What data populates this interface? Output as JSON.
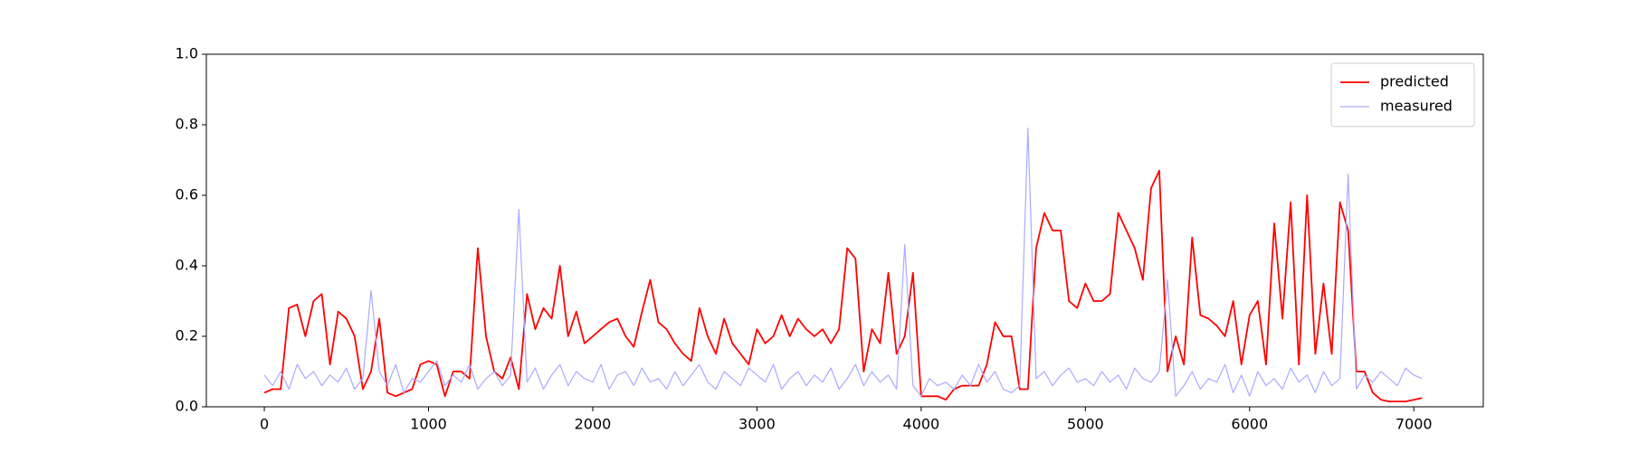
{
  "chart_data": {
    "type": "line",
    "x": [
      0,
      50,
      100,
      150,
      200,
      250,
      300,
      350,
      400,
      450,
      500,
      550,
      600,
      650,
      700,
      750,
      800,
      850,
      900,
      950,
      1000,
      1050,
      1100,
      1150,
      1200,
      1250,
      1300,
      1350,
      1400,
      1450,
      1500,
      1550,
      1600,
      1650,
      1700,
      1750,
      1800,
      1850,
      1900,
      1950,
      2000,
      2050,
      2100,
      2150,
      2200,
      2250,
      2300,
      2350,
      2400,
      2450,
      2500,
      2550,
      2600,
      2650,
      2700,
      2750,
      2800,
      2850,
      2900,
      2950,
      3000,
      3050,
      3100,
      3150,
      3200,
      3250,
      3300,
      3350,
      3400,
      3450,
      3500,
      3550,
      3600,
      3650,
      3700,
      3750,
      3800,
      3850,
      3900,
      3950,
      4000,
      4050,
      4100,
      4150,
      4200,
      4250,
      4300,
      4350,
      4400,
      4450,
      4500,
      4550,
      4600,
      4650,
      4700,
      4750,
      4800,
      4850,
      4900,
      4950,
      5000,
      5050,
      5100,
      5150,
      5200,
      5250,
      5300,
      5350,
      5400,
      5450,
      5500,
      5550,
      5600,
      5650,
      5700,
      5750,
      5800,
      5850,
      5900,
      5950,
      6000,
      6050,
      6100,
      6150,
      6200,
      6250,
      6300,
      6350,
      6400,
      6450,
      6500,
      6550,
      6600,
      6650,
      6700,
      6750,
      6800,
      6850,
      6900,
      6950,
      7000,
      7050
    ],
    "series": [
      {
        "name": "predicted",
        "color": "#ff0000",
        "values": [
          0.04,
          0.05,
          0.05,
          0.28,
          0.29,
          0.2,
          0.3,
          0.32,
          0.12,
          0.27,
          0.25,
          0.2,
          0.05,
          0.1,
          0.25,
          0.04,
          0.03,
          0.04,
          0.05,
          0.12,
          0.13,
          0.12,
          0.03,
          0.1,
          0.1,
          0.08,
          0.45,
          0.2,
          0.1,
          0.08,
          0.14,
          0.05,
          0.32,
          0.22,
          0.28,
          0.25,
          0.4,
          0.2,
          0.27,
          0.18,
          0.2,
          0.22,
          0.24,
          0.25,
          0.2,
          0.17,
          0.27,
          0.36,
          0.24,
          0.22,
          0.18,
          0.15,
          0.13,
          0.28,
          0.2,
          0.15,
          0.25,
          0.18,
          0.15,
          0.12,
          0.22,
          0.18,
          0.2,
          0.26,
          0.2,
          0.25,
          0.22,
          0.2,
          0.22,
          0.18,
          0.22,
          0.45,
          0.42,
          0.1,
          0.22,
          0.18,
          0.38,
          0.15,
          0.2,
          0.38,
          0.03,
          0.03,
          0.03,
          0.02,
          0.05,
          0.06,
          0.06,
          0.06,
          0.12,
          0.24,
          0.2,
          0.2,
          0.05,
          0.05,
          0.45,
          0.55,
          0.5,
          0.5,
          0.3,
          0.28,
          0.35,
          0.3,
          0.3,
          0.32,
          0.55,
          0.5,
          0.45,
          0.36,
          0.62,
          0.67,
          0.1,
          0.2,
          0.12,
          0.48,
          0.26,
          0.25,
          0.23,
          0.2,
          0.3,
          0.12,
          0.26,
          0.3,
          0.12,
          0.52,
          0.25,
          0.58,
          0.12,
          0.6,
          0.15,
          0.35,
          0.15,
          0.58,
          0.5,
          0.1,
          0.1,
          0.04,
          0.02,
          0.015,
          0.015,
          0.015,
          0.02,
          0.025
        ]
      },
      {
        "name": "measured",
        "color": "#aaaaff",
        "values": [
          0.09,
          0.06,
          0.1,
          0.05,
          0.12,
          0.08,
          0.1,
          0.06,
          0.09,
          0.07,
          0.11,
          0.05,
          0.08,
          0.33,
          0.1,
          0.06,
          0.12,
          0.04,
          0.08,
          0.07,
          0.1,
          0.13,
          0.06,
          0.09,
          0.07,
          0.12,
          0.05,
          0.08,
          0.1,
          0.06,
          0.09,
          0.56,
          0.07,
          0.11,
          0.05,
          0.09,
          0.12,
          0.06,
          0.1,
          0.08,
          0.07,
          0.12,
          0.05,
          0.09,
          0.1,
          0.06,
          0.11,
          0.07,
          0.08,
          0.05,
          0.1,
          0.06,
          0.09,
          0.12,
          0.07,
          0.05,
          0.1,
          0.08,
          0.06,
          0.11,
          0.09,
          0.07,
          0.12,
          0.05,
          0.08,
          0.1,
          0.06,
          0.09,
          0.07,
          0.11,
          0.05,
          0.08,
          0.12,
          0.06,
          0.1,
          0.07,
          0.09,
          0.05,
          0.46,
          0.06,
          0.03,
          0.08,
          0.06,
          0.07,
          0.05,
          0.09,
          0.06,
          0.12,
          0.07,
          0.1,
          0.05,
          0.04,
          0.06,
          0.79,
          0.08,
          0.1,
          0.06,
          0.09,
          0.11,
          0.07,
          0.08,
          0.06,
          0.1,
          0.07,
          0.09,
          0.05,
          0.11,
          0.08,
          0.07,
          0.1,
          0.36,
          0.03,
          0.06,
          0.1,
          0.05,
          0.08,
          0.07,
          0.12,
          0.04,
          0.09,
          0.03,
          0.1,
          0.06,
          0.08,
          0.05,
          0.11,
          0.07,
          0.09,
          0.04,
          0.1,
          0.06,
          0.08,
          0.66,
          0.05,
          0.09,
          0.07,
          0.1,
          0.08,
          0.06,
          0.11,
          0.09,
          0.08
        ]
      }
    ],
    "xlim": [
      -353,
      7423
    ],
    "ylim": [
      0,
      1
    ],
    "xticks": [
      0,
      1000,
      2000,
      3000,
      4000,
      5000,
      6000,
      7000
    ],
    "yticks": [
      {
        "value": 0,
        "label": "0.0"
      },
      0.2,
      0.4,
      0.6,
      0.8,
      {
        "value": 1,
        "label": "1.0"
      }
    ],
    "legend": "upper right"
  }
}
